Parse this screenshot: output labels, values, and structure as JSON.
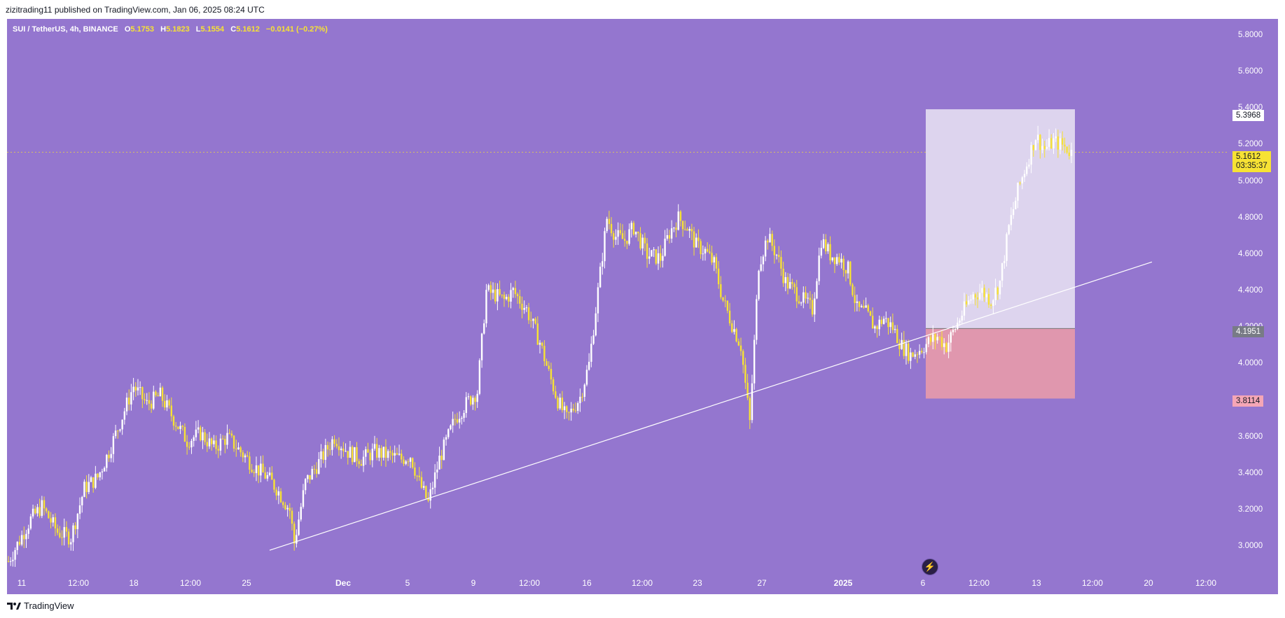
{
  "header": {
    "publish_line": "zizitrading11 published on TradingView.com, Jan 06, 2025 08:24 UTC"
  },
  "symbol": {
    "name": "SUI / TetherUS, 4h, BINANCE",
    "open_key": "O",
    "open": "5.1753",
    "high_key": "H",
    "high": "5.1823",
    "low_key": "L",
    "low": "5.1554",
    "close_key": "C",
    "close": "5.1612",
    "change": "−0.0141 (−0.27%)"
  },
  "price_axis": {
    "ticks": [
      "5.8000",
      "5.6000",
      "5.4000",
      "5.2000",
      "5.0000",
      "4.8000",
      "4.6000",
      "4.4000",
      "4.2000",
      "4.0000",
      "3.8000",
      "3.6000",
      "3.4000",
      "3.2000",
      "3.0000"
    ],
    "tick_values": [
      5.8,
      5.6,
      5.4,
      5.2,
      5.0,
      4.8,
      4.6,
      4.4,
      4.2,
      4.0,
      3.8,
      3.6,
      3.4,
      3.2,
      3.0
    ]
  },
  "badges": {
    "target": "5.3968",
    "current_price": "5.1612",
    "countdown": "03:35:37",
    "entry": "4.1951",
    "stop": "3.8114"
  },
  "date_axis": [
    "11",
    "12:00",
    "18",
    "12:00",
    "25",
    "Dec",
    "5",
    "9",
    "12:00",
    "16",
    "12:00",
    "23",
    "27",
    "2025",
    "6",
    "12:00",
    "13",
    "12:00",
    "20",
    "12:00"
  ],
  "colors": {
    "background": "#9476cf",
    "candle_up": "#ffffff",
    "candle_down": "#f7e234",
    "profit_zone": "#ddd4ee",
    "loss_zone": "#e097ae",
    "current_price": "#f7e234"
  },
  "footer": {
    "brand": "TradingView"
  },
  "chart_data": {
    "type": "candlestick",
    "timeframe": "4h",
    "symbol": "SUI / TetherUS",
    "path_points": [
      [
        0,
        2.92
      ],
      [
        10,
        3.15
      ],
      [
        15,
        3.22
      ],
      [
        22,
        3.08
      ],
      [
        28,
        3.05
      ],
      [
        34,
        3.32
      ],
      [
        40,
        3.38
      ],
      [
        45,
        3.52
      ],
      [
        50,
        3.68
      ],
      [
        56,
        3.88
      ],
      [
        62,
        3.78
      ],
      [
        68,
        3.83
      ],
      [
        74,
        3.7
      ],
      [
        80,
        3.58
      ],
      [
        86,
        3.62
      ],
      [
        92,
        3.54
      ],
      [
        98,
        3.6
      ],
      [
        104,
        3.52
      ],
      [
        110,
        3.44
      ],
      [
        116,
        3.38
      ],
      [
        120,
        3.32
      ],
      [
        126,
        3.2
      ],
      [
        128,
        3.02
      ],
      [
        133,
        3.35
      ],
      [
        140,
        3.48
      ],
      [
        146,
        3.6
      ],
      [
        152,
        3.52
      ],
      [
        158,
        3.48
      ],
      [
        164,
        3.52
      ],
      [
        170,
        3.5
      ],
      [
        176,
        3.48
      ],
      [
        180,
        3.5
      ],
      [
        184,
        3.35
      ],
      [
        188,
        3.24
      ],
      [
        193,
        3.48
      ],
      [
        200,
        3.7
      ],
      [
        206,
        3.8
      ],
      [
        210,
        3.85
      ],
      [
        214,
        4.4
      ],
      [
        218,
        4.38
      ],
      [
        222,
        4.35
      ],
      [
        226,
        4.4
      ],
      [
        232,
        4.3
      ],
      [
        238,
        4.12
      ],
      [
        242,
        3.95
      ],
      [
        246,
        3.8
      ],
      [
        250,
        3.7
      ],
      [
        256,
        3.82
      ],
      [
        260,
        4.0
      ],
      [
        264,
        4.4
      ],
      [
        268,
        4.8
      ],
      [
        272,
        4.7
      ],
      [
        276,
        4.68
      ],
      [
        280,
        4.75
      ],
      [
        286,
        4.6
      ],
      [
        292,
        4.58
      ],
      [
        296,
        4.72
      ],
      [
        300,
        4.8
      ],
      [
        304,
        4.75
      ],
      [
        308,
        4.65
      ],
      [
        312,
        4.62
      ],
      [
        316,
        4.55
      ],
      [
        320,
        4.35
      ],
      [
        324,
        4.22
      ],
      [
        328,
        4.1
      ],
      [
        332,
        3.68
      ],
      [
        336,
        4.55
      ],
      [
        340,
        4.7
      ],
      [
        344,
        4.6
      ],
      [
        348,
        4.45
      ],
      [
        352,
        4.4
      ],
      [
        356,
        4.35
      ],
      [
        360,
        4.3
      ],
      [
        364,
        4.68
      ],
      [
        368,
        4.6
      ],
      [
        372,
        4.58
      ],
      [
        376,
        4.52
      ],
      [
        380,
        4.3
      ],
      [
        384,
        4.28
      ],
      [
        388,
        4.2
      ],
      [
        392,
        4.25
      ],
      [
        396,
        4.2
      ],
      [
        400,
        4.1
      ],
      [
        404,
        4.05
      ],
      [
        408,
        4.08
      ],
      [
        412,
        4.12
      ],
      [
        416,
        4.15
      ],
      [
        420,
        4.1
      ],
      [
        424,
        4.2
      ],
      [
        428,
        4.3
      ],
      [
        432,
        4.38
      ],
      [
        436,
        4.4
      ],
      [
        440,
        4.35
      ],
      [
        444,
        4.45
      ],
      [
        448,
        4.75
      ],
      [
        452,
        4.95
      ],
      [
        456,
        5.1
      ],
      [
        460,
        5.25
      ],
      [
        464,
        5.18
      ],
      [
        468,
        5.22
      ],
      [
        472,
        5.2
      ],
      [
        476,
        5.16
      ]
    ],
    "trendline": {
      "from": [
        "Nov 26",
        2.98
      ],
      "to": [
        "Jan 18",
        4.56
      ]
    },
    "position": {
      "target": 5.3968,
      "entry": 4.1951,
      "stop": 3.8114
    },
    "current_price": 5.1612,
    "ylim": [
      2.85,
      5.9
    ]
  }
}
